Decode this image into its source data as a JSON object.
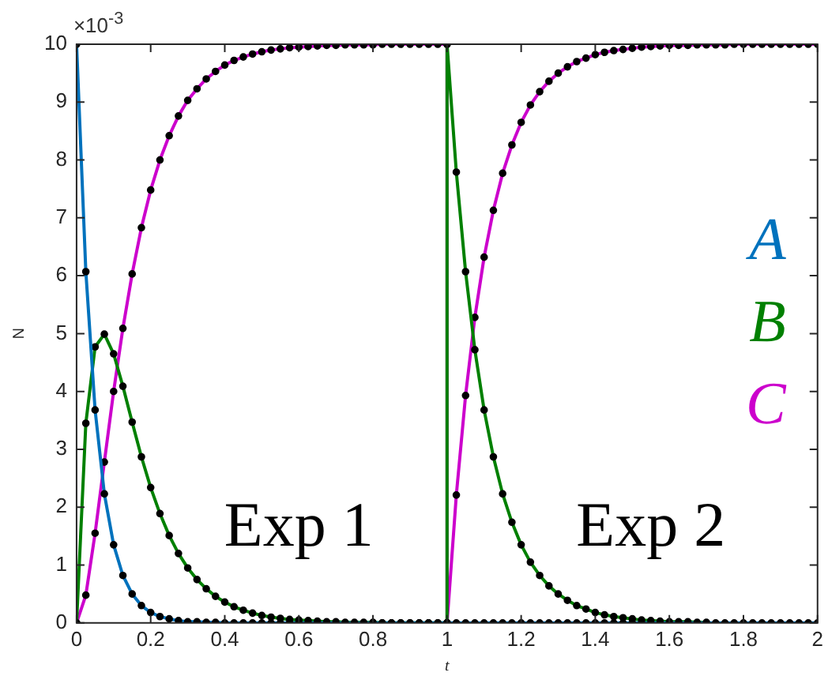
{
  "chart_data": {
    "type": "line",
    "xlabel": "t",
    "ylabel": "N",
    "annotations": [
      "×10$^{-3}$",
      "Exp 1",
      "Exp 2"
    ],
    "x": [
      0,
      0.025,
      0.05,
      0.075,
      0.1,
      0.125,
      0.15,
      0.175,
      0.2,
      0.225,
      0.25,
      0.275,
      0.3,
      0.325,
      0.35,
      0.375,
      0.4,
      0.425,
      0.45,
      0.475,
      0.5,
      0.525,
      0.55,
      0.575,
      0.6,
      0.625,
      0.65,
      0.675,
      0.7,
      0.725,
      0.75,
      0.775,
      0.8,
      0.825,
      0.85,
      0.875,
      0.9,
      0.925,
      0.95,
      0.975,
      1,
      1,
      1.025,
      1.05,
      1.075,
      1.1,
      1.125,
      1.15,
      1.175,
      1.2,
      1.225,
      1.25,
      1.275,
      1.3,
      1.325,
      1.35,
      1.375,
      1.4,
      1.425,
      1.45,
      1.475,
      1.5,
      1.525,
      1.55,
      1.575,
      1.6,
      1.625,
      1.65,
      1.675,
      1.7,
      1.725,
      1.75,
      1.775,
      1.8,
      1.825,
      1.85,
      1.875,
      1.9,
      1.925,
      1.95,
      1.975,
      2
    ],
    "series": [
      {
        "name": "A",
        "color": "#0072bd",
        "values": [
          10,
          6.07,
          3.68,
          2.23,
          1.35,
          0.82,
          0.5,
          0.3,
          0.18,
          0.11,
          0.07,
          0.04,
          0.02,
          0.02,
          0.01,
          0.01,
          0,
          0,
          0,
          0,
          0,
          0,
          0,
          0,
          0,
          0,
          0,
          0,
          0,
          0,
          0,
          0,
          0,
          0,
          0,
          0,
          0,
          0,
          0,
          0,
          0,
          0,
          0,
          0,
          0,
          0,
          0,
          0,
          0,
          0,
          0,
          0,
          0,
          0,
          0,
          0,
          0,
          0,
          0,
          0,
          0,
          0,
          0,
          0,
          0,
          0,
          0,
          0,
          0,
          0,
          0,
          0,
          0,
          0,
          0,
          0,
          0,
          0,
          0,
          0,
          0,
          0
        ]
      },
      {
        "name": "B",
        "color": "#008000",
        "values": [
          0,
          3.45,
          4.77,
          4.99,
          4.65,
          4.09,
          3.47,
          2.87,
          2.34,
          1.89,
          1.51,
          1.2,
          0.95,
          0.75,
          0.59,
          0.46,
          0.36,
          0.28,
          0.22,
          0.17,
          0.13,
          0.1,
          0.08,
          0.06,
          0.05,
          0.04,
          0.03,
          0.02,
          0.02,
          0.01,
          0.01,
          0.01,
          0.01,
          0,
          0,
          0,
          0,
          0,
          0,
          0,
          0,
          10,
          7.79,
          6.07,
          4.72,
          3.68,
          2.87,
          2.23,
          1.74,
          1.35,
          1.05,
          0.82,
          0.64,
          0.5,
          0.39,
          0.3,
          0.24,
          0.18,
          0.14,
          0.11,
          0.09,
          0.07,
          0.05,
          0.04,
          0.03,
          0.02,
          0.02,
          0.02,
          0.01,
          0.01,
          null,
          null,
          null,
          null,
          null,
          null,
          null,
          null,
          null,
          null,
          null,
          null
        ]
      },
      {
        "name": "C",
        "color": "#cc00cc",
        "values": [
          0,
          0.48,
          1.55,
          2.78,
          4,
          5.09,
          6.03,
          6.83,
          7.48,
          8,
          8.42,
          8.76,
          9.03,
          9.23,
          9.4,
          9.53,
          9.64,
          9.72,
          9.78,
          9.83,
          9.87,
          9.9,
          9.92,
          9.94,
          9.95,
          9.96,
          9.97,
          9.98,
          9.98,
          9.99,
          9.99,
          9.99,
          9.99,
          10,
          10,
          10,
          10,
          10,
          10,
          10,
          10,
          0,
          2.21,
          3.93,
          5.28,
          6.32,
          7.13,
          7.77,
          8.26,
          8.65,
          8.95,
          9.18,
          9.36,
          9.5,
          9.61,
          9.7,
          9.76,
          9.82,
          9.86,
          9.89,
          9.91,
          9.93,
          9.95,
          9.96,
          9.97,
          9.98,
          9.98,
          9.98,
          9.99,
          9.99,
          9.99,
          9.99,
          10,
          10,
          10,
          10,
          10,
          10,
          10,
          10,
          10,
          10
        ]
      }
    ],
    "xlim": [
      0,
      2
    ],
    "xticks": [
      0,
      0.2,
      0.4,
      0.6,
      0.8,
      1,
      1.2,
      1.4,
      1.6,
      1.8,
      2
    ],
    "ylim": [
      0,
      10
    ],
    "yticks": [
      0,
      1,
      2,
      3,
      4,
      5,
      6,
      7,
      8,
      9,
      10
    ],
    "grid": false,
    "legend": "top right",
    "marker": "circle",
    "line_style": "solid"
  }
}
